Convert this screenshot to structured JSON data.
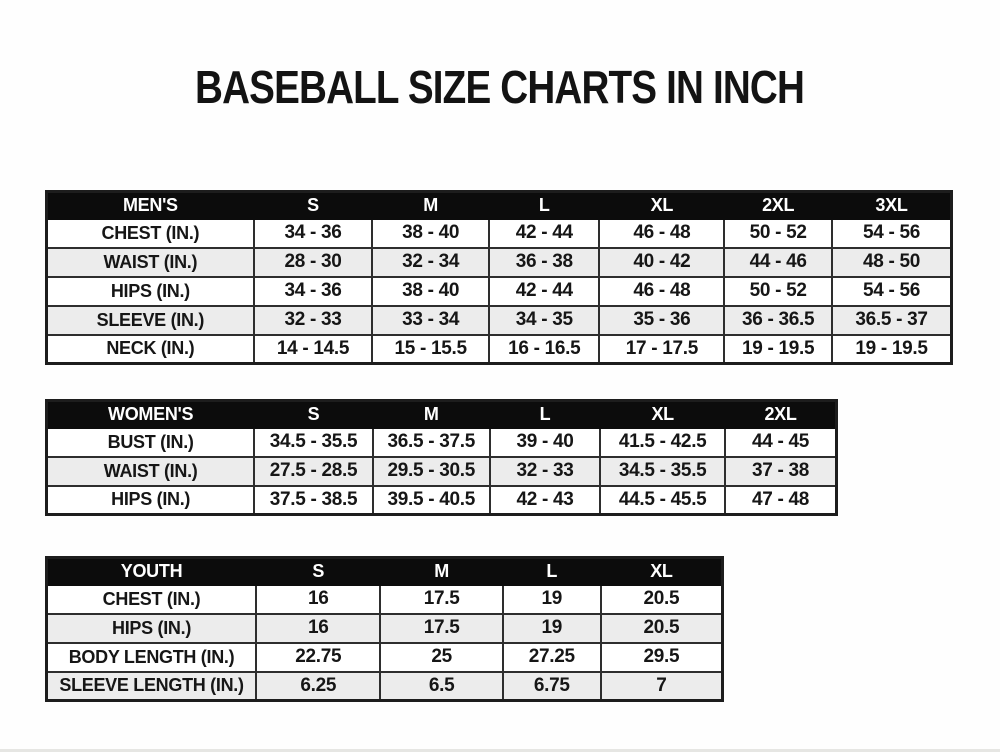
{
  "page": {
    "title": "BASEBALL SIZE CHARTS IN INCH"
  },
  "colors": {
    "header_bg": "#0c0c0c",
    "header_text": "#ffffff",
    "row_bg": "#ffffff",
    "row_alt_bg": "#ececec",
    "border": "#2e2e2e",
    "text": "#161616"
  },
  "chart_data": [
    {
      "type": "table",
      "title": "MEN'S",
      "columns": [
        "MEN'S",
        "S",
        "M",
        "L",
        "XL",
        "2XL",
        "3XL"
      ],
      "rows": [
        [
          "CHEST (IN.)",
          "34 - 36",
          "38 - 40",
          "42 - 44",
          "46 - 48",
          "50 - 52",
          "54 - 56"
        ],
        [
          "WAIST (IN.)",
          "28 - 30",
          "32 - 34",
          "36 - 38",
          "40 - 42",
          "44 - 46",
          "48 - 50"
        ],
        [
          "HIPS (IN.)",
          "34 - 36",
          "38 - 40",
          "42 - 44",
          "46 - 48",
          "50 - 52",
          "54 - 56"
        ],
        [
          "SLEEVE (IN.)",
          "32 - 33",
          "33 - 34",
          "34 - 35",
          "35 - 36",
          "36 - 36.5",
          "36.5 - 37"
        ],
        [
          "NECK (IN.)",
          "14 - 14.5",
          "15 - 15.5",
          "16 - 16.5",
          "17 - 17.5",
          "19 - 19.5",
          "19 - 19.5"
        ]
      ]
    },
    {
      "type": "table",
      "title": "WOMEN'S",
      "columns": [
        "WOMEN'S",
        "S",
        "M",
        "L",
        "XL",
        "2XL"
      ],
      "rows": [
        [
          "BUST (IN.)",
          "34.5 - 35.5",
          "36.5 - 37.5",
          "39 - 40",
          "41.5 - 42.5",
          "44 - 45"
        ],
        [
          "WAIST (IN.)",
          "27.5 - 28.5",
          "29.5 - 30.5",
          "32 - 33",
          "34.5 - 35.5",
          "37 - 38"
        ],
        [
          "HIPS (IN.)",
          "37.5 - 38.5",
          "39.5 - 40.5",
          "42 - 43",
          "44.5 - 45.5",
          "47 - 48"
        ]
      ]
    },
    {
      "type": "table",
      "title": "YOUTH",
      "columns": [
        "YOUTH",
        "S",
        "M",
        "L",
        "XL"
      ],
      "rows": [
        [
          "CHEST (IN.)",
          "16",
          "17.5",
          "19",
          "20.5"
        ],
        [
          "HIPS (IN.)",
          "16",
          "17.5",
          "19",
          "20.5"
        ],
        [
          "BODY LENGTH (IN.)",
          "22.75",
          "25",
          "27.25",
          "29.5"
        ],
        [
          "SLEEVE LENGTH (IN.)",
          "6.25",
          "6.5",
          "6.75",
          "7"
        ]
      ]
    }
  ]
}
